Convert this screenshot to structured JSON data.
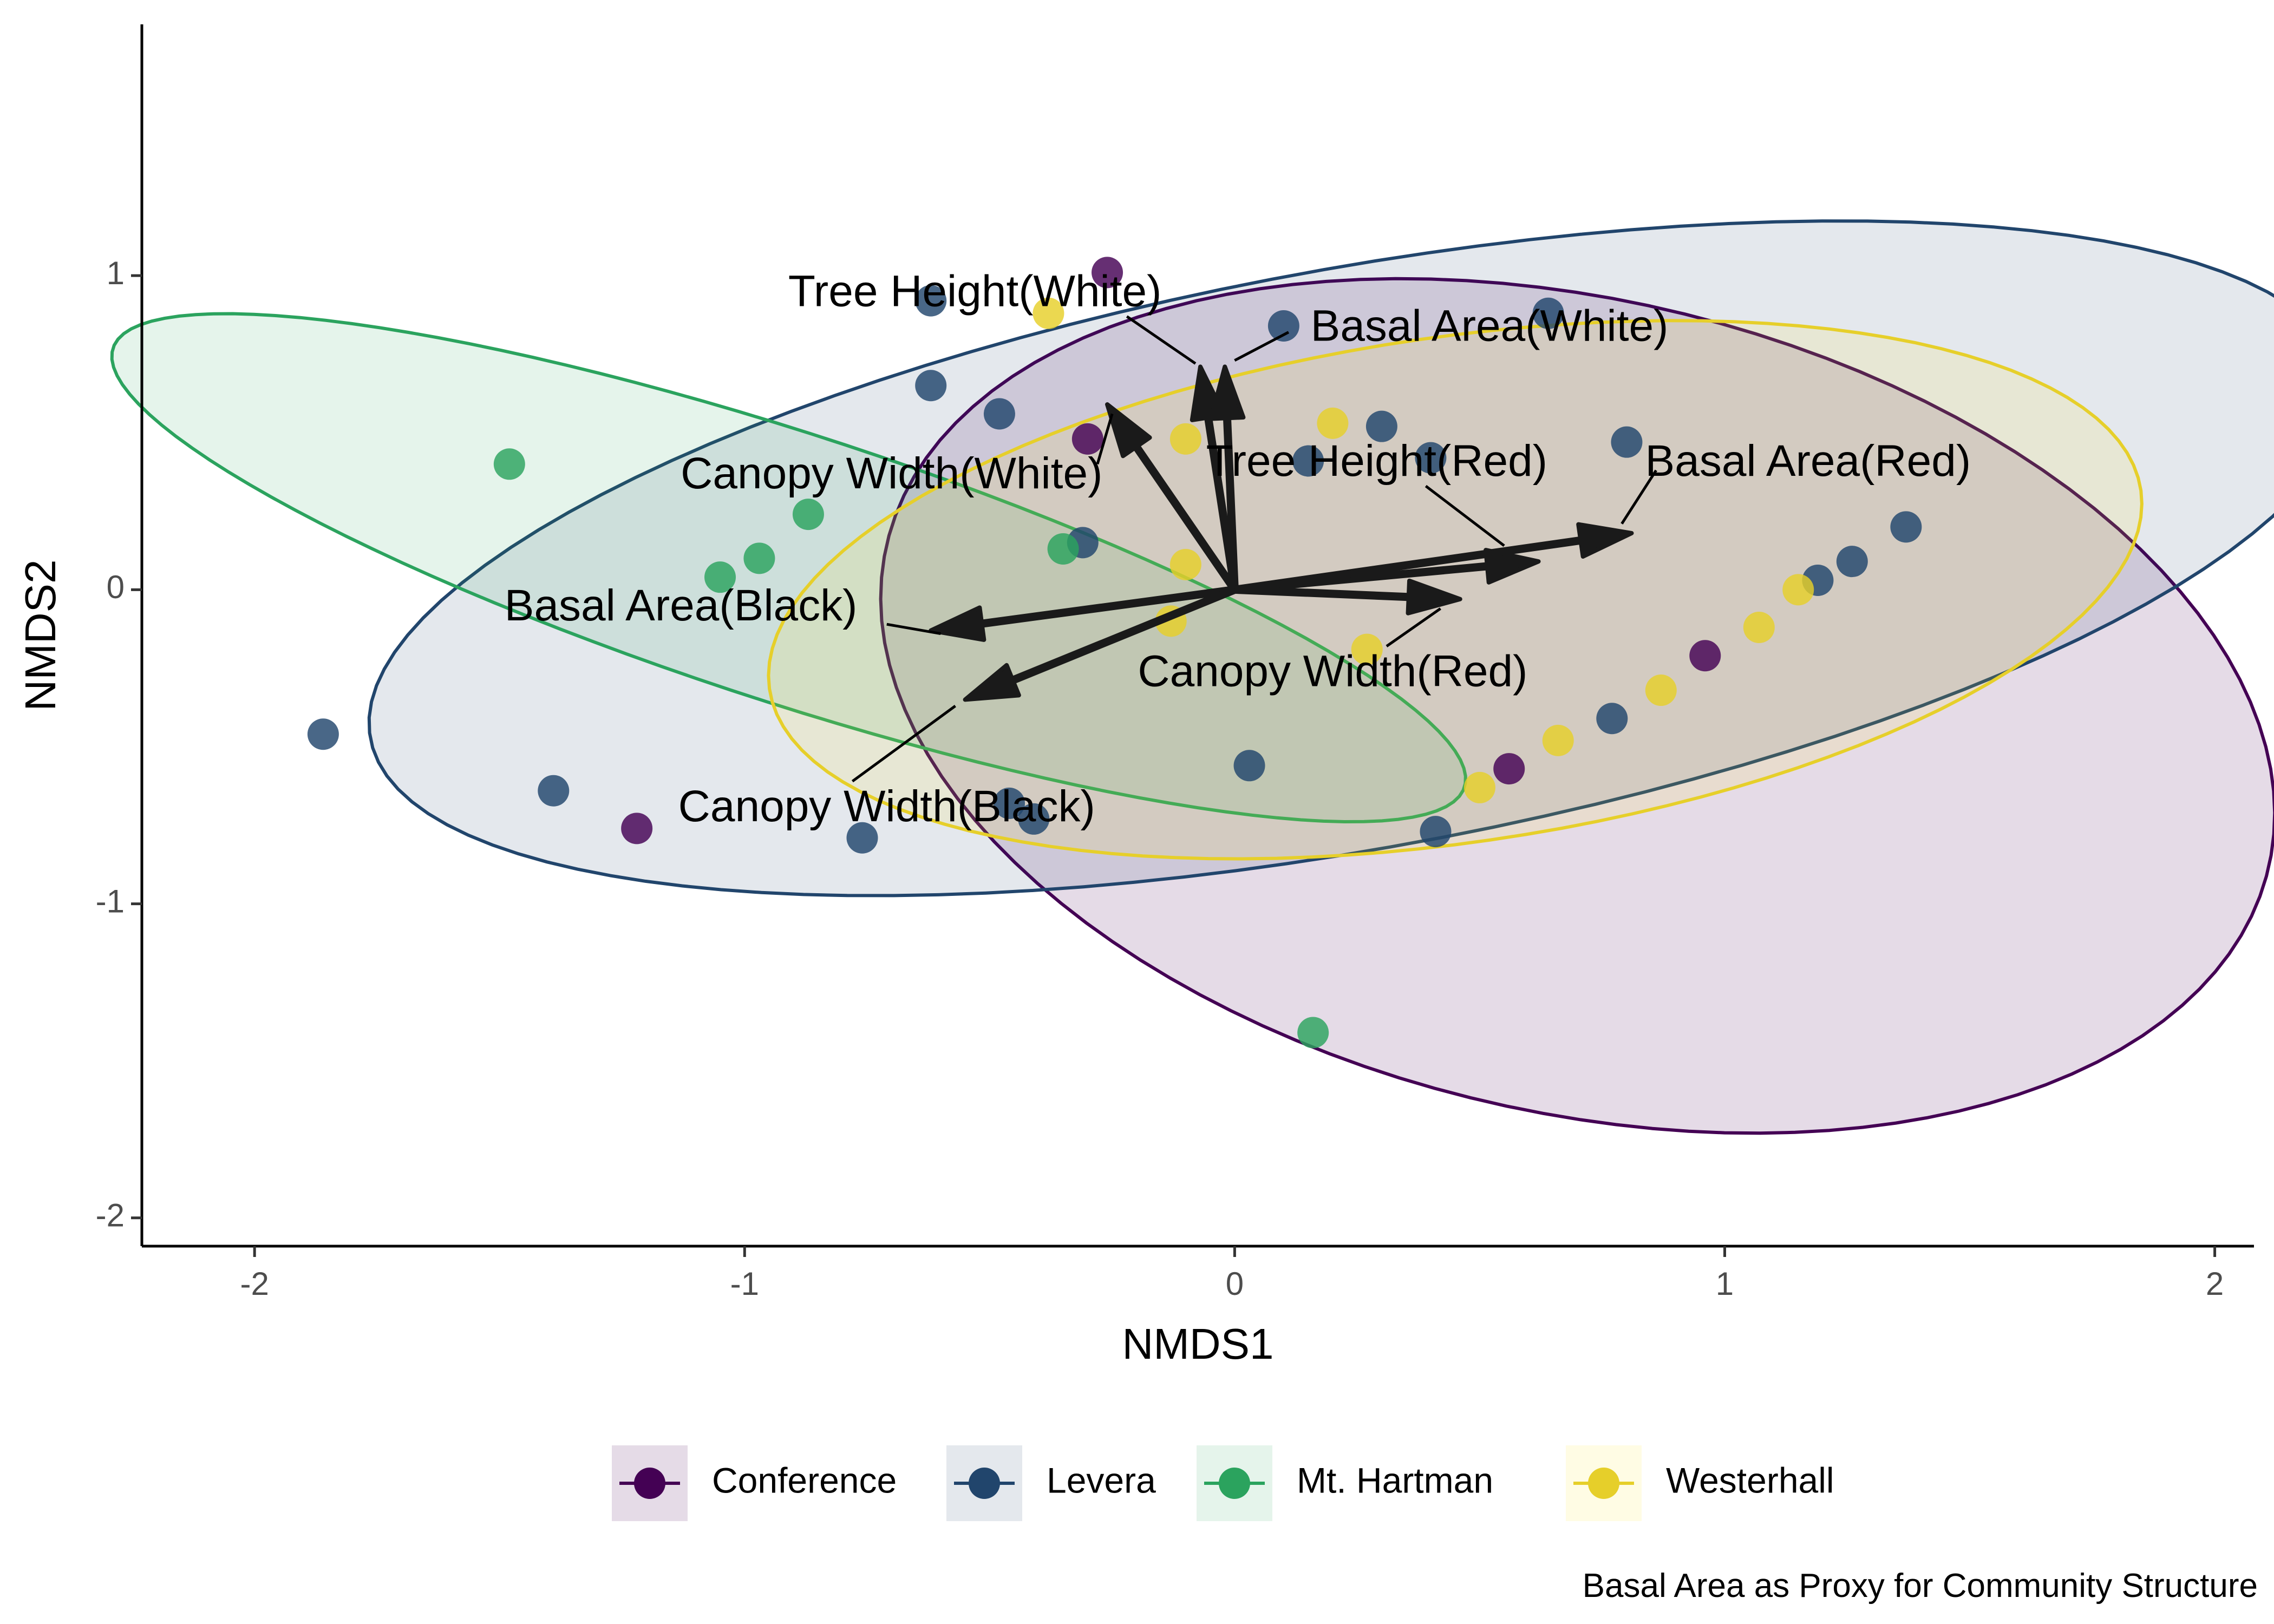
{
  "chart_data": {
    "type": "scatter",
    "caption": "Basal Area as Proxy for Community Structure",
    "xlabel": "NMDS1",
    "ylabel": "NMDS2",
    "xlim": [
      -2.23,
      2.08
    ],
    "ylim": [
      -2.09,
      1.8
    ],
    "x_ticks": [
      -2,
      -1,
      0,
      1,
      2
    ],
    "y_ticks": [
      -2,
      -1,
      0,
      1
    ],
    "x_tick_labels": [
      "-2",
      "-1",
      "0",
      "1",
      "2"
    ],
    "y_tick_labels": [
      "-2",
      "-1",
      "0",
      "1"
    ],
    "grid": false,
    "legend_position": "bottom",
    "series": [
      {
        "name": "Conference",
        "color": "#440154",
        "fill": "#440154",
        "fill_opacity": 0.14,
        "ellipse": {
          "cx": 0.7,
          "cy": -0.37,
          "rx": 1.2,
          "ry": 1.56,
          "angle": 50
        },
        "points": [
          {
            "x": -0.26,
            "y": 1.01
          },
          {
            "x": -0.3,
            "y": 0.48
          },
          {
            "x": 0.56,
            "y": -0.57
          },
          {
            "x": 0.96,
            "y": -0.21
          },
          {
            "x": -1.22,
            "y": -0.76
          }
        ]
      },
      {
        "name": "Levera",
        "color": "#21456c",
        "fill": "#21456c",
        "fill_opacity": 0.12,
        "ellipse": {
          "cx": 0.25,
          "cy": 0.1,
          "rx": 2.1,
          "ry": 0.9,
          "angle": 18
        },
        "points": [
          {
            "x": -1.86,
            "y": -0.46
          },
          {
            "x": -1.39,
            "y": -0.64
          },
          {
            "x": -0.62,
            "y": 0.65
          },
          {
            "x": -0.48,
            "y": 0.56
          },
          {
            "x": -0.62,
            "y": 0.92
          },
          {
            "x": -0.31,
            "y": 0.15
          },
          {
            "x": -0.76,
            "y": -0.79
          },
          {
            "x": -0.46,
            "y": -0.68
          },
          {
            "x": -0.41,
            "y": -0.73
          },
          {
            "x": 0.03,
            "y": -0.56
          },
          {
            "x": 0.1,
            "y": 0.84
          },
          {
            "x": 0.15,
            "y": 0.41
          },
          {
            "x": 0.3,
            "y": 0.52
          },
          {
            "x": 0.4,
            "y": 0.42
          },
          {
            "x": 0.41,
            "y": -0.77
          },
          {
            "x": 0.64,
            "y": 0.88
          },
          {
            "x": 0.77,
            "y": -0.41
          },
          {
            "x": 0.8,
            "y": 0.47
          },
          {
            "x": 1.19,
            "y": 0.03
          },
          {
            "x": 1.26,
            "y": 0.09
          },
          {
            "x": 1.37,
            "y": 0.2
          }
        ]
      },
      {
        "name": "Mt. Hartman",
        "color": "#2ba35e",
        "fill": "#2ba35e",
        "fill_opacity": 0.12,
        "ellipse": {
          "cx": -0.91,
          "cy": 0.07,
          "rx": 1.55,
          "ry": 0.4,
          "angle": -28
        },
        "points": [
          {
            "x": -1.48,
            "y": 0.4
          },
          {
            "x": -1.05,
            "y": 0.04
          },
          {
            "x": -0.97,
            "y": 0.1
          },
          {
            "x": -0.87,
            "y": 0.24
          },
          {
            "x": -0.35,
            "y": 0.13
          },
          {
            "x": 0.16,
            "y": -1.41
          }
        ]
      },
      {
        "name": "Westerhall",
        "color": "#e6cf2a",
        "fill": "#fde725",
        "fill_opacity": 0.12,
        "ellipse": {
          "cx": 0.45,
          "cy": 0.0,
          "rx": 1.44,
          "ry": 0.79,
          "angle": 16
        },
        "points": [
          {
            "x": -0.38,
            "y": 0.88
          },
          {
            "x": -0.1,
            "y": 0.48
          },
          {
            "x": -0.1,
            "y": 0.08
          },
          {
            "x": -0.13,
            "y": -0.1
          },
          {
            "x": 0.2,
            "y": 0.53
          },
          {
            "x": 0.27,
            "y": -0.19
          },
          {
            "x": 0.5,
            "y": -0.63
          },
          {
            "x": 0.66,
            "y": -0.48
          },
          {
            "x": 0.87,
            "y": -0.32
          },
          {
            "x": 1.07,
            "y": -0.12
          },
          {
            "x": 1.15,
            "y": 0.0
          }
        ]
      }
    ],
    "vectors": [
      {
        "label": "Tree Height(White)",
        "x": -0.07,
        "y": 0.71,
        "label_x": -0.53,
        "label_y": 0.94,
        "leader_from_x": -0.22,
        "leader_from_y": 0.87,
        "leader_to_x": -0.08,
        "leader_to_y": 0.72
      },
      {
        "label": "Basal Area(White)",
        "x": -0.02,
        "y": 0.71,
        "label_x": 0.52,
        "label_y": 0.83,
        "leader_from_x": 0.11,
        "leader_from_y": 0.82,
        "leader_to_x": 0.0,
        "leader_to_y": 0.73
      },
      {
        "label": "Canopy Width(White)",
        "x": -0.26,
        "y": 0.59,
        "label_x": -0.7,
        "label_y": 0.36,
        "leader_from_x": -0.28,
        "leader_from_y": 0.4,
        "leader_to_x": -0.25,
        "leader_to_y": 0.56
      },
      {
        "label": "Tree Height(Red)",
        "x": 0.62,
        "y": 0.09,
        "label_x": 0.29,
        "label_y": 0.4,
        "leader_from_x": 0.39,
        "leader_from_y": 0.33,
        "leader_to_x": 0.55,
        "leader_to_y": 0.14
      },
      {
        "label": "Basal Area(Red)",
        "x": 0.81,
        "y": 0.18,
        "label_x": 1.17,
        "label_y": 0.4,
        "leader_from_x": 0.86,
        "leader_from_y": 0.38,
        "leader_to_x": 0.79,
        "leader_to_y": 0.21
      },
      {
        "label": "Canopy Width(Red)",
        "x": 0.46,
        "y": -0.03,
        "label_x": 0.2,
        "label_y": -0.27,
        "leader_from_x": 0.31,
        "leader_from_y": -0.18,
        "leader_to_x": 0.42,
        "leader_to_y": -0.06
      },
      {
        "label": "Basal Area(Black)",
        "x": -0.62,
        "y": -0.13,
        "label_x": -1.13,
        "label_y": -0.06,
        "leader_from_x": -0.71,
        "leader_from_y": -0.11,
        "leader_to_x": -0.6,
        "leader_to_y": -0.14
      },
      {
        "label": "Canopy Width(Black)",
        "x": -0.55,
        "y": -0.35,
        "label_x": -0.71,
        "label_y": -0.7,
        "leader_from_x": -0.78,
        "leader_from_y": -0.61,
        "leader_to_x": -0.57,
        "leader_to_y": -0.37
      }
    ]
  }
}
